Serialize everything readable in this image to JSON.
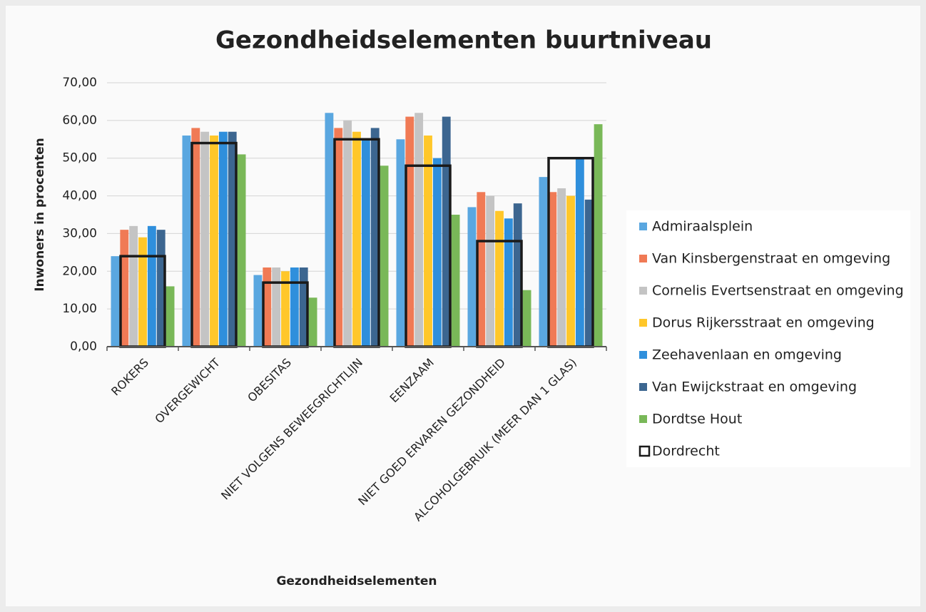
{
  "chart_data": {
    "type": "bar",
    "title": "Gezondheidselementen buurtniveau",
    "x_label": "Gezondheidselementen",
    "y_label": "Inwoners in procenten",
    "categories": [
      "ROKERS",
      "OVERGEWICHT",
      "OBESITAS",
      "NIET VOLGENS BEWEEGRICHTLIJN",
      "EENZAAM",
      "NIET GOED ERVAREN GEZONDHEID",
      "ALCOHOLGEBRUIK (MEER DAN 1 GLAS)"
    ],
    "series": [
      {
        "name": "Admiraalsplein",
        "color": "#5aa7e0",
        "values": [
          24,
          56,
          19,
          62,
          55,
          37,
          45
        ]
      },
      {
        "name": "Van Kinsbergenstraat en omgeving",
        "color": "#f07a55",
        "values": [
          31,
          58,
          21,
          58,
          61,
          41,
          41
        ]
      },
      {
        "name": "Cornelis Evertsenstraat en omgeving",
        "color": "#c4c4c4",
        "values": [
          32,
          57,
          21,
          60,
          62,
          40,
          42
        ]
      },
      {
        "name": "Dorus Rijkersstraat en omgeving",
        "color": "#ffc72a",
        "values": [
          29,
          56,
          20,
          57,
          56,
          36,
          40
        ]
      },
      {
        "name": "Zeehavenlaan en omgeving",
        "color": "#2f8fdc",
        "values": [
          32,
          57,
          21,
          55,
          50,
          34,
          50
        ]
      },
      {
        "name": "Van Ewijckstraat en omgeving",
        "color": "#3c6690",
        "values": [
          31,
          57,
          21,
          58,
          61,
          38,
          39
        ]
      },
      {
        "name": "Dordtse Hout",
        "color": "#79b858",
        "values": [
          16,
          51,
          13,
          48,
          35,
          15,
          59
        ]
      },
      {
        "name": "Dordrecht",
        "color": "#1a1a1a",
        "outline": true,
        "values": [
          24,
          54,
          17,
          55,
          48,
          28,
          50
        ]
      }
    ],
    "ylim": [
      0,
      70
    ],
    "yticks": [
      {
        "value": 0,
        "label": "0,00"
      },
      {
        "value": 10,
        "label": "10,00"
      },
      {
        "value": 20,
        "label": "20,00"
      },
      {
        "value": 30,
        "label": "30,00"
      },
      {
        "value": 40,
        "label": "40,00"
      },
      {
        "value": 50,
        "label": "50,00"
      },
      {
        "value": 60,
        "label": "60,00"
      },
      {
        "value": 70,
        "label": "70,00"
      }
    ],
    "grid": true,
    "legend": "right"
  }
}
